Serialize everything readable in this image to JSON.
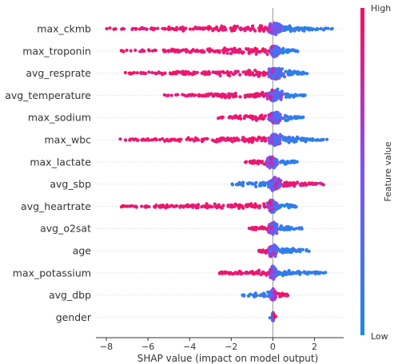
{
  "chart_data": {
    "type": "scatter",
    "subtype": "shap-beeswarm-summary",
    "title": "",
    "xlabel": "SHAP value (impact on model output)",
    "ylabel": "",
    "xlim": [
      -8.5,
      3.4
    ],
    "x_ticks": [
      -8,
      -6,
      -4,
      -2,
      0,
      2
    ],
    "x_tick_labels": [
      "−8",
      "−6",
      "−4",
      "−2",
      "0",
      "2"
    ],
    "grid": "horizontal dotted lines per feature",
    "colorbar": {
      "title": "Feature value",
      "high_label": "High",
      "low_label": "Low",
      "low_color": "#1e88e5",
      "high_color": "#ff0d57"
    },
    "features": [
      {
        "name": "max_ckmb",
        "min": -8.0,
        "max": 2.9,
        "high_side": "neg",
        "core": [
          -0.3,
          0.5
        ]
      },
      {
        "name": "max_troponin",
        "min": -7.4,
        "max": 1.3,
        "high_side": "neg",
        "core": [
          -0.2,
          0.4
        ]
      },
      {
        "name": "avg_resprate",
        "min": -7.3,
        "max": 1.8,
        "high_side": "neg",
        "core": [
          -0.3,
          0.6
        ]
      },
      {
        "name": "avg_temperature",
        "min": -5.4,
        "max": 1.6,
        "high_side": "neg",
        "core": [
          -0.4,
          0.6
        ]
      },
      {
        "name": "max_sodium",
        "min": -2.7,
        "max": 1.5,
        "high_side": "neg",
        "core": [
          -0.3,
          0.5
        ]
      },
      {
        "name": "max_wbc",
        "min": -7.4,
        "max": 2.6,
        "high_side": "neg",
        "core": [
          -0.3,
          0.5
        ]
      },
      {
        "name": "max_lactate",
        "min": -1.4,
        "max": 1.2,
        "high_side": "neg",
        "core": [
          -0.4,
          0.3
        ]
      },
      {
        "name": "avg_sbp",
        "min": -2.1,
        "max": 2.6,
        "high_side": "pos",
        "core": [
          -0.3,
          0.5
        ]
      },
      {
        "name": "avg_heartrate",
        "min": -7.6,
        "max": 1.3,
        "high_side": "neg",
        "core": [
          -0.3,
          0.3
        ]
      },
      {
        "name": "avg_o2sat",
        "min": -1.3,
        "max": 1.4,
        "high_side": "neg",
        "core": [
          -0.3,
          0.3
        ]
      },
      {
        "name": "age",
        "min": -0.8,
        "max": 2.0,
        "high_side": "neg",
        "core": [
          -0.3,
          0.3
        ]
      },
      {
        "name": "max_potassium",
        "min": -2.7,
        "max": 2.6,
        "high_side": "neg",
        "core": [
          -0.2,
          0.2
        ]
      },
      {
        "name": "avg_dbp",
        "min": -1.5,
        "max": 0.8,
        "high_side": "pos",
        "core": [
          -0.2,
          0.2
        ]
      },
      {
        "name": "gender",
        "min": -0.15,
        "max": 0.2,
        "high_side": "pos",
        "core": [
          -0.05,
          0.05
        ]
      }
    ]
  }
}
